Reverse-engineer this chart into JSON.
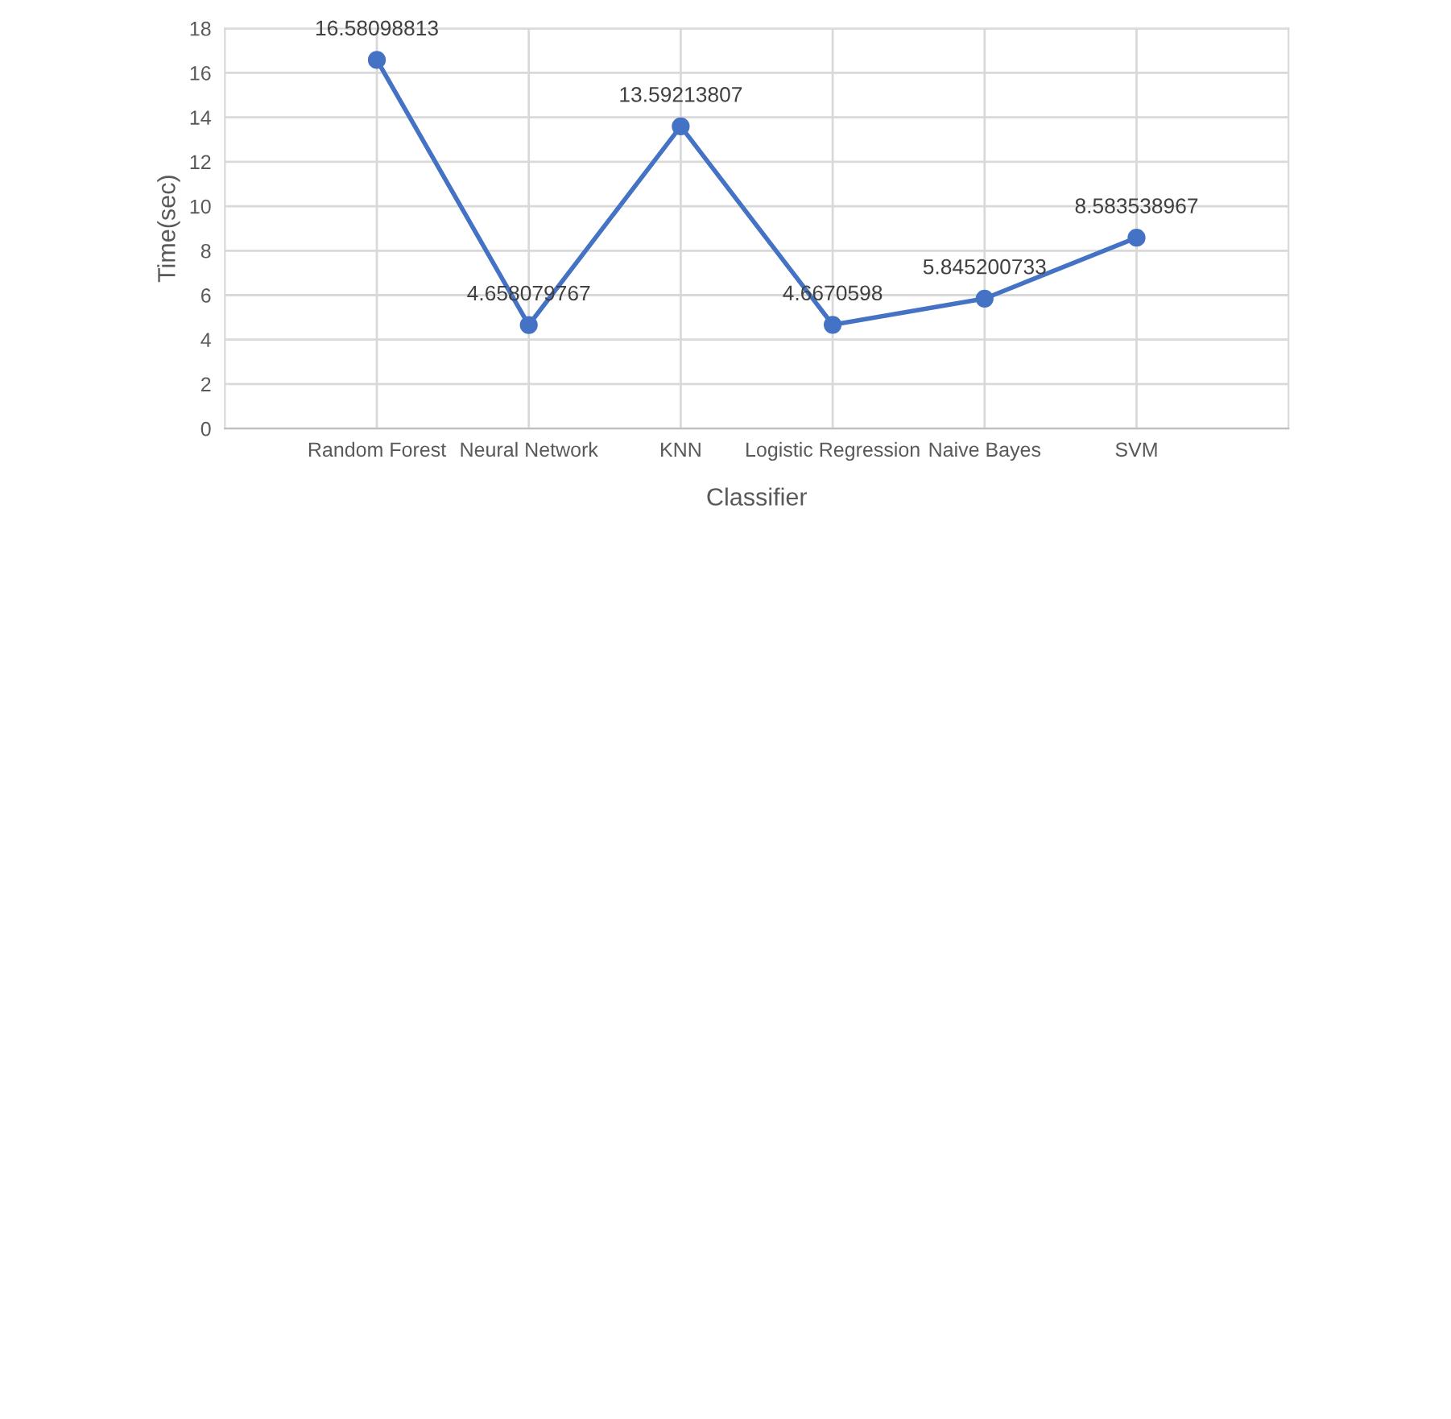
{
  "chart_data": {
    "type": "line",
    "xlabel": "Classifier",
    "ylabel": "Time(sec)",
    "categories": [
      "Random Forest",
      "Neural Network",
      "KNN",
      "Logistic Regression",
      "Naive Bayes",
      "SVM"
    ],
    "series": [
      {
        "color": "#4472c4",
        "values": [
          16.58098813,
          4.658079767,
          13.59213807,
          4.6670598,
          5.845200733,
          8.583538967
        ]
      }
    ],
    "ylim": [
      0,
      18
    ],
    "yticks": [
      0,
      2,
      4,
      6,
      8,
      10,
      12,
      14,
      16,
      18
    ],
    "grid": true,
    "marker": "circle",
    "line_style": "solid",
    "data_labels": true
  }
}
